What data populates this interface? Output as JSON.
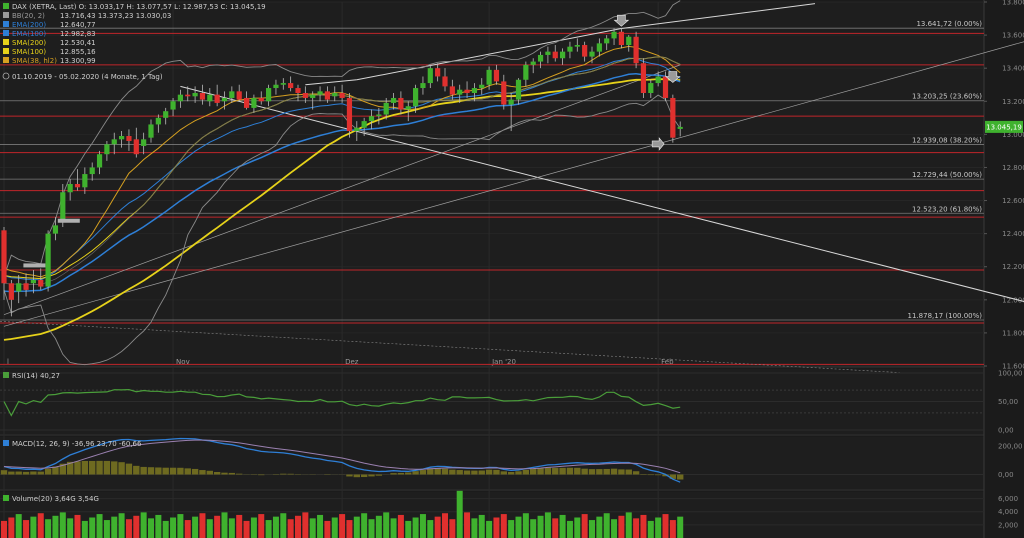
{
  "header": {
    "instrument": "DAX (XETRA, Last)",
    "ohlc": "O: 13.033,17  H: 13.077,57  L: 12.987,53  C: 13.045,19",
    "range": "01.10.2019 - 05.02.2020   (4 Monate, 1 Tag)"
  },
  "legend": [
    {
      "label": "BB(20, 2)",
      "values": "13.716,43  13.373,23  13.030,03",
      "color": "#9a9a9a"
    },
    {
      "label": "EMA(200)",
      "values": "12.640,77",
      "color": "#2e7fd6"
    },
    {
      "label": "EMA(100)",
      "values": "12.982,83",
      "color": "#2e7fd6"
    },
    {
      "label": "SMA(200)",
      "values": "12.530,41",
      "color": "#e6d21a"
    },
    {
      "label": "SMA(100)",
      "values": "12.855,16",
      "color": "#e6d21a"
    },
    {
      "label": "SMA(38, hl2)",
      "values": "13.300,99",
      "color": "#d6a020"
    }
  ],
  "price_axis": [
    "13.800,00",
    "13.600,00",
    "13.400,00",
    "13.200,00",
    "13.000,00",
    "12.800,00",
    "12.600,00",
    "12.400,00",
    "12.200,00",
    "12.000,00",
    "11.800,00",
    "11.600,00"
  ],
  "current_price": "13.045,19",
  "fib_levels": [
    {
      "label": "13.641,72 (0.00%)",
      "value": 13641.72
    },
    {
      "label": "13.203,25 (23.60%)",
      "value": 13203.25
    },
    {
      "label": "12.939,08 (38.20%)",
      "value": 12939.08
    },
    {
      "label": "12.729,44 (50.00%)",
      "value": 12729.44
    },
    {
      "label": "12.523,20 (61.80%)",
      "value": 12523.2
    },
    {
      "label": "11.878,17 (100.00%)",
      "value": 11878.17
    }
  ],
  "red_levels": [
    13610,
    13420,
    13110,
    12890,
    12660,
    12500,
    12180,
    11860,
    11610
  ],
  "x_labels": [
    {
      "label": "l",
      "index": 0
    },
    {
      "label": "Nov",
      "index": 23
    },
    {
      "label": "Dez",
      "index": 46
    },
    {
      "label": "Jan '20",
      "index": 66
    },
    {
      "label": "Feb",
      "index": 89
    }
  ],
  "rsi": {
    "label": "RSI(14)",
    "value": "40,27",
    "axis": [
      "100,00",
      "50,00",
      "0,00"
    ]
  },
  "macd": {
    "label": "MACD(12, 26, 9)",
    "values": [
      "-36,96",
      "23,70",
      "-60,66"
    ],
    "axis": [
      "200,00",
      "0,00"
    ]
  },
  "volume": {
    "label": "Volume(20)",
    "values": [
      "3,64G",
      "3,54G"
    ],
    "axis": [
      "6,000",
      "4,000",
      "2,000"
    ]
  },
  "colors": {
    "up": "#3fb22e",
    "down": "#e0302e",
    "red_line": "#c0262a",
    "fib": "#7a7a7a",
    "ema": "#2e7fd6",
    "sma": "#e6d21a",
    "sma38": "#d6a020",
    "bb": "#8a8a8a",
    "rsi": "#4a9e3a",
    "macd": "#2e7fd6",
    "signal": "#9a80b0",
    "hist": "#6e6a20"
  },
  "chart_data": {
    "type": "candlestick",
    "ylim": [
      11600,
      13800
    ],
    "candles": [
      [
        12420,
        12440,
        12000,
        12100
      ],
      [
        12100,
        12120,
        11900,
        12000
      ],
      [
        12050,
        12150,
        11980,
        12100
      ],
      [
        12100,
        12160,
        12020,
        12060
      ],
      [
        12100,
        12180,
        12040,
        12120
      ],
      [
        12120,
        12190,
        12060,
        12080
      ],
      [
        12080,
        12420,
        12050,
        12400
      ],
      [
        12400,
        12500,
        12360,
        12450
      ],
      [
        12480,
        12700,
        12440,
        12650
      ],
      [
        12650,
        12730,
        12600,
        12700
      ],
      [
        12700,
        12790,
        12660,
        12680
      ],
      [
        12680,
        12800,
        12640,
        12760
      ],
      [
        12760,
        12830,
        12720,
        12800
      ],
      [
        12800,
        12900,
        12760,
        12880
      ],
      [
        12880,
        12960,
        12840,
        12940
      ],
      [
        12940,
        13010,
        12880,
        12970
      ],
      [
        12970,
        13020,
        12920,
        12990
      ],
      [
        12990,
        13030,
        12900,
        12960
      ],
      [
        12970,
        13040,
        12860,
        12880
      ],
      [
        12930,
        13010,
        12880,
        12970
      ],
      [
        12980,
        13090,
        12950,
        13060
      ],
      [
        13060,
        13120,
        13010,
        13100
      ],
      [
        13100,
        13160,
        13060,
        13140
      ],
      [
        13150,
        13220,
        13110,
        13200
      ],
      [
        13200,
        13270,
        13160,
        13240
      ],
      [
        13240,
        13290,
        13200,
        13230
      ],
      [
        13230,
        13290,
        13190,
        13250
      ],
      [
        13250,
        13300,
        13180,
        13210
      ],
      [
        13200,
        13280,
        13170,
        13240
      ],
      [
        13240,
        13300,
        13170,
        13190
      ],
      [
        13200,
        13260,
        13150,
        13220
      ],
      [
        13220,
        13290,
        13190,
        13260
      ],
      [
        13260,
        13300,
        13200,
        13210
      ],
      [
        13220,
        13260,
        13150,
        13160
      ],
      [
        13160,
        13240,
        13130,
        13220
      ],
      [
        13220,
        13260,
        13180,
        13200
      ],
      [
        13200,
        13300,
        13170,
        13280
      ],
      [
        13280,
        13330,
        13240,
        13300
      ],
      [
        13300,
        13340,
        13270,
        13310
      ],
      [
        13310,
        13350,
        13260,
        13280
      ],
      [
        13280,
        13300,
        13200,
        13250
      ],
      [
        13250,
        13290,
        13190,
        13220
      ],
      [
        13220,
        13260,
        13150,
        13240
      ],
      [
        13240,
        13290,
        13200,
        13260
      ],
      [
        13260,
        13290,
        13190,
        13210
      ],
      [
        13230,
        13290,
        13200,
        13250
      ],
      [
        13250,
        13300,
        13190,
        13220
      ],
      [
        13220,
        13250,
        12980,
        13020
      ],
      [
        13020,
        13080,
        12960,
        13040
      ],
      [
        13040,
        13100,
        12990,
        13080
      ],
      [
        13080,
        13150,
        13030,
        13110
      ],
      [
        13110,
        13160,
        13060,
        13120
      ],
      [
        13120,
        13220,
        13090,
        13190
      ],
      [
        13190,
        13250,
        13150,
        13220
      ],
      [
        13220,
        13260,
        13120,
        13150
      ],
      [
        13150,
        13200,
        13080,
        13170
      ],
      [
        13170,
        13300,
        13130,
        13280
      ],
      [
        13280,
        13350,
        13240,
        13310
      ],
      [
        13310,
        13420,
        13280,
        13400
      ],
      [
        13400,
        13430,
        13320,
        13350
      ],
      [
        13350,
        13400,
        13260,
        13290
      ],
      [
        13290,
        13330,
        13210,
        13240
      ],
      [
        13240,
        13300,
        13190,
        13270
      ],
      [
        13270,
        13320,
        13220,
        13250
      ],
      [
        13250,
        13310,
        13200,
        13280
      ],
      [
        13280,
        13340,
        13240,
        13300
      ],
      [
        13300,
        13410,
        13270,
        13390
      ],
      [
        13390,
        13420,
        13300,
        13320
      ],
      [
        13320,
        13360,
        13150,
        13180
      ],
      [
        13180,
        13250,
        13020,
        13210
      ],
      [
        13210,
        13340,
        13180,
        13330
      ],
      [
        13330,
        13440,
        13290,
        13420
      ],
      [
        13420,
        13460,
        13370,
        13440
      ],
      [
        13440,
        13500,
        13400,
        13480
      ],
      [
        13480,
        13530,
        13430,
        13500
      ],
      [
        13500,
        13540,
        13440,
        13460
      ],
      [
        13460,
        13520,
        13420,
        13500
      ],
      [
        13500,
        13560,
        13460,
        13530
      ],
      [
        13530,
        13580,
        13500,
        13540
      ],
      [
        13540,
        13560,
        13440,
        13470
      ],
      [
        13470,
        13530,
        13430,
        13500
      ],
      [
        13500,
        13580,
        13470,
        13550
      ],
      [
        13550,
        13600,
        13510,
        13580
      ],
      [
        13580,
        13640,
        13540,
        13620
      ],
      [
        13620,
        13640,
        13520,
        13540
      ],
      [
        13540,
        13600,
        13500,
        13590
      ],
      [
        13590,
        13620,
        13400,
        13430
      ],
      [
        13430,
        13460,
        13220,
        13250
      ],
      [
        13250,
        13330,
        13220,
        13310
      ],
      [
        13310,
        13380,
        13290,
        13350
      ],
      [
        13350,
        13380,
        13200,
        13220
      ],
      [
        13220,
        13240,
        12950,
        12980
      ],
      [
        13033,
        13078,
        12988,
        13045
      ]
    ]
  }
}
